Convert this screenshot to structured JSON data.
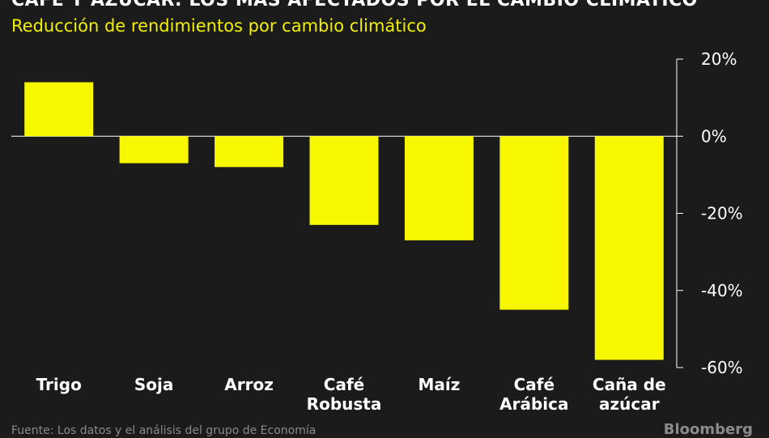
{
  "header": {
    "title": "CAFÉ Y AZÚCAR: LOS MÁS AFECTADOS POR EL CAMBIO CLIMÁTICO",
    "subtitle": "Reducción de rendimientos por cambio climático"
  },
  "colors": {
    "background": "#1b1b1b",
    "bar": "#f7f700",
    "text": "#ffffff",
    "accent": "#f2f000"
  },
  "chart_data": {
    "type": "bar",
    "title": "CAFÉ Y AZÚCAR: LOS MÁS AFECTADOS POR EL CAMBIO CLIMÁTICO",
    "subtitle": "Reducción de rendimientos por cambio climático",
    "categories": [
      [
        "Trigo"
      ],
      [
        "Soja"
      ],
      [
        "Arroz"
      ],
      [
        "Café",
        "Robusta"
      ],
      [
        "Maíz"
      ],
      [
        "Café",
        "Arábica"
      ],
      [
        "Caña de",
        "azúcar"
      ]
    ],
    "values": [
      14,
      -7,
      -8,
      -23,
      -27,
      -45,
      -58
    ],
    "ylim": [
      -60,
      20
    ],
    "yticks": [
      20,
      0,
      -20,
      -40,
      -60
    ],
    "ytick_labels": [
      "20%",
      "0%",
      "-20%",
      "-40%",
      "-60%"
    ],
    "y_axis_position": "right",
    "grid": false,
    "zero_line": true
  },
  "footer": {
    "source": "Fuente: Los datos y el análisis del grupo de Economía",
    "brand": "Bloomberg"
  }
}
